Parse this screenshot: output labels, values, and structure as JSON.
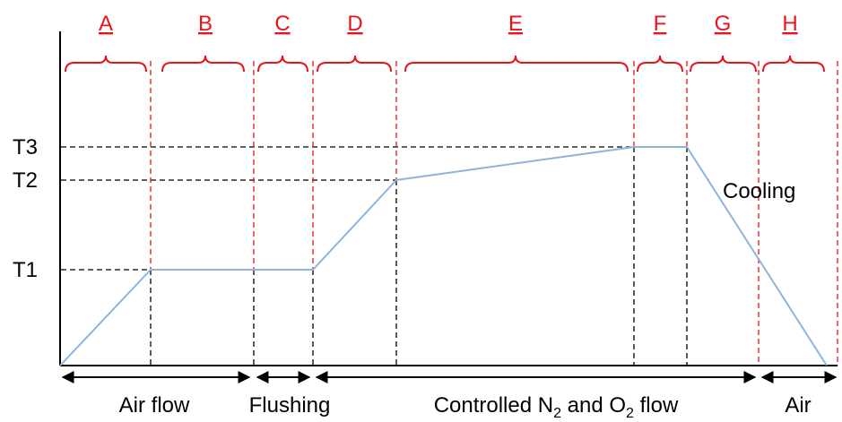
{
  "segments": [
    {
      "letter": "A"
    },
    {
      "letter": "B"
    },
    {
      "letter": "C"
    },
    {
      "letter": "D"
    },
    {
      "letter": "E"
    },
    {
      "letter": "F"
    },
    {
      "letter": "G"
    },
    {
      "letter": "H"
    }
  ],
  "temperatures": [
    {
      "label": "T3"
    },
    {
      "label": "T2"
    },
    {
      "label": "T1"
    }
  ],
  "annotation": "Cooling",
  "phases": [
    {
      "label": "Air flow"
    },
    {
      "label": "Flushing"
    },
    {
      "label_main": "Controlled N",
      "sub1": "2",
      "label_mid": " and O",
      "sub2": "2",
      "label_end": " flow"
    },
    {
      "label": "Air"
    }
  ],
  "colors": {
    "profile": "#8fb4d9",
    "segment": "#e8141b",
    "guide": "#000000",
    "axis": "#000000"
  }
}
